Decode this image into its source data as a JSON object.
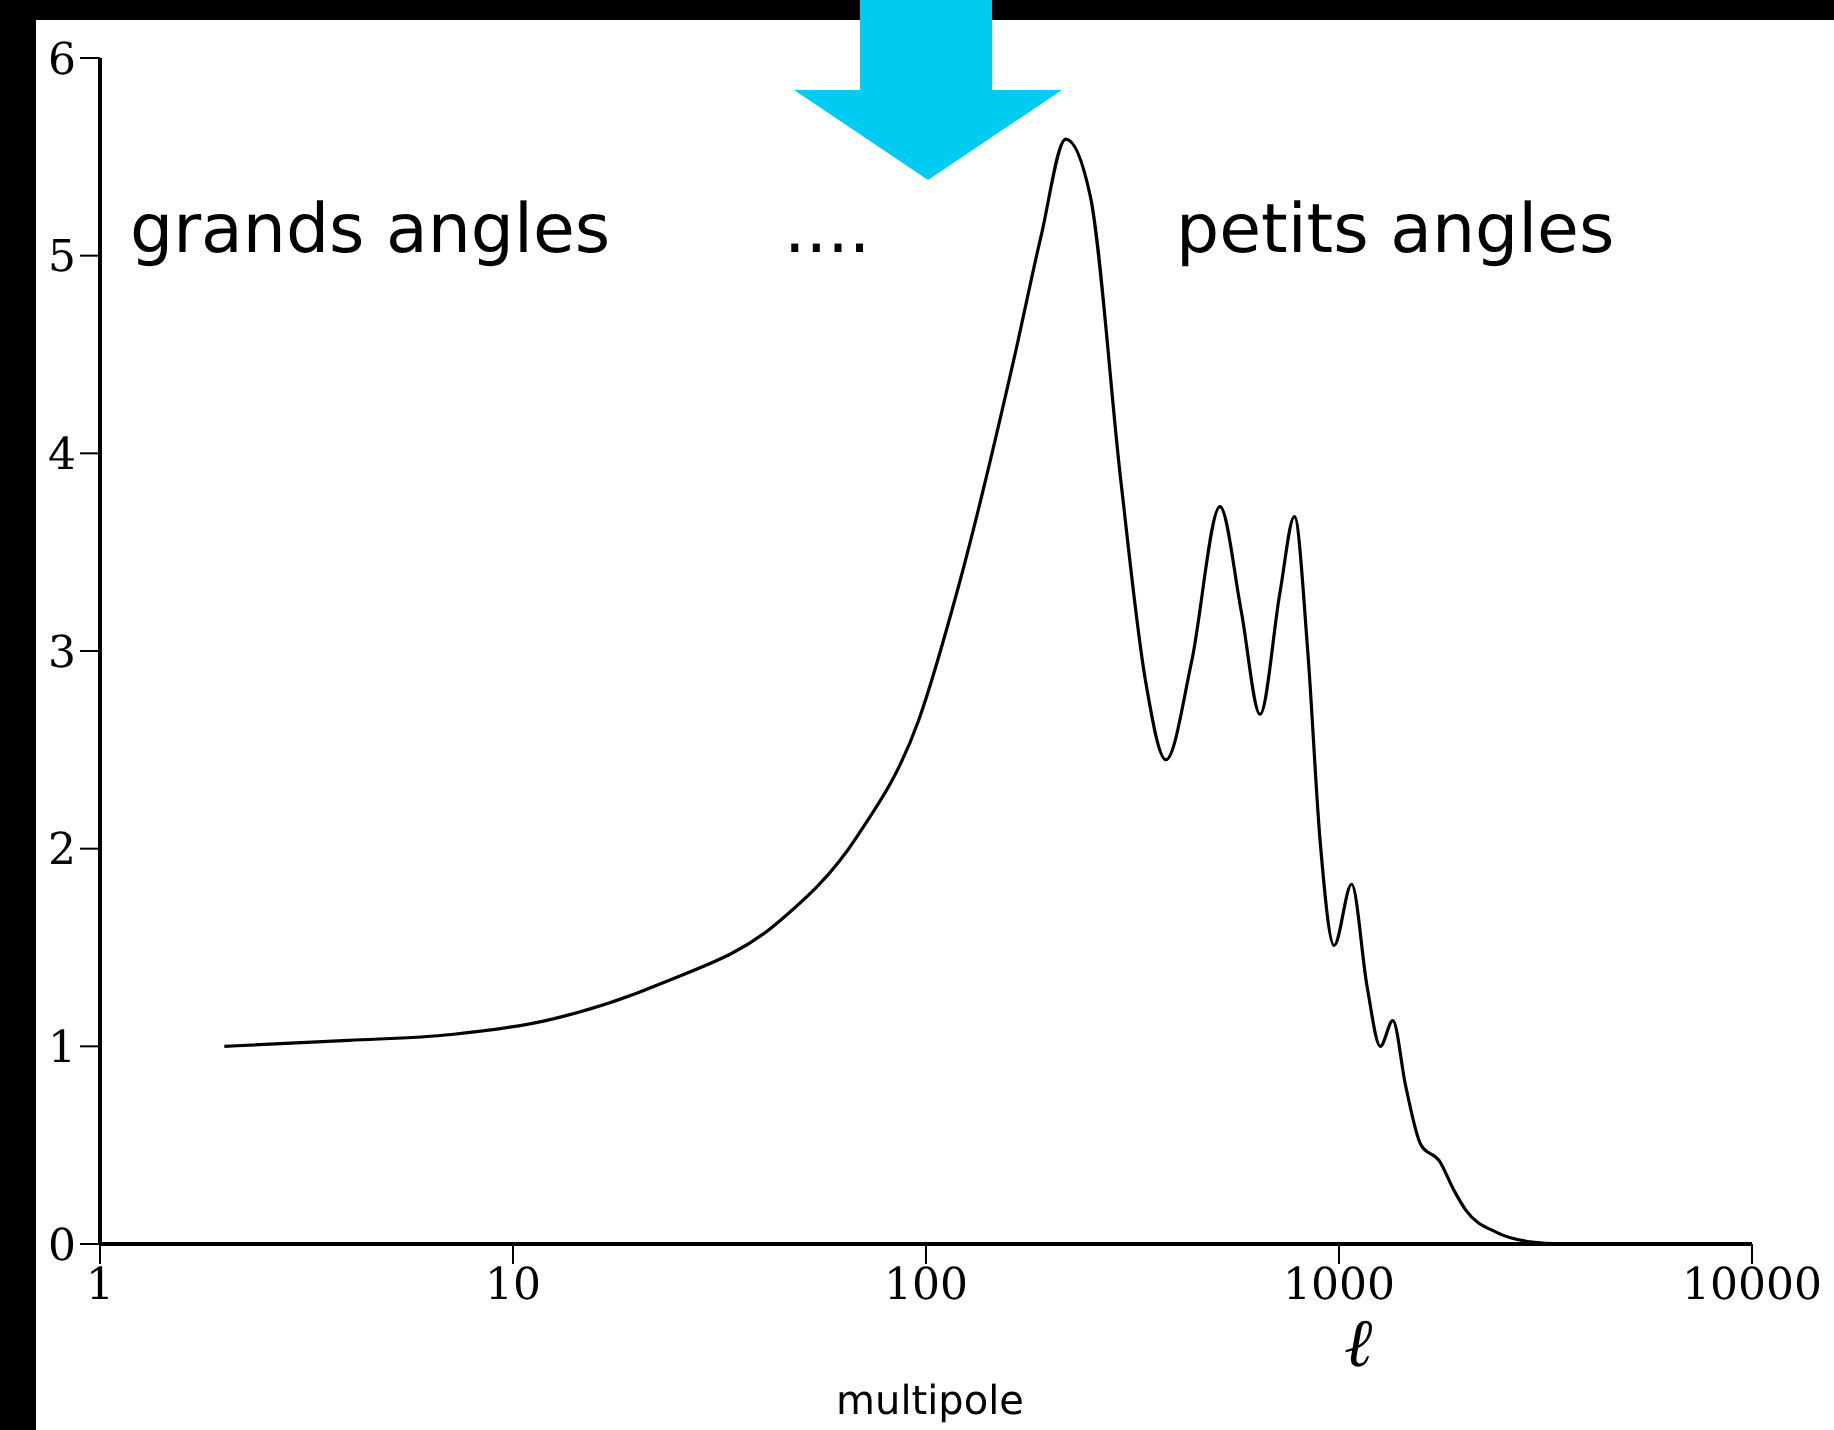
{
  "chart_data": {
    "type": "line",
    "xlabel": "ℓ",
    "annotations": [
      "grands angles",
      "....",
      "petits angles",
      "multipole"
    ],
    "x": [
      2,
      4,
      7.1,
      12,
      23,
      44,
      68,
      96,
      120,
      163,
      190,
      218,
      250,
      296,
      340,
      381,
      440,
      515,
      580,
      644,
      720,
      780,
      840,
      900,
      973,
      1073,
      1170,
      1259,
      1350,
      1450,
      1580,
      1750,
      1900,
      2030,
      2400,
      2930,
      3500
    ],
    "series": [
      {
        "color": "#000000",
        "values": [
          1.0,
          1.03,
          1.06,
          1.13,
          1.32,
          1.63,
          2.06,
          2.65,
          3.33,
          4.47,
          5.1,
          5.59,
          5.3,
          3.87,
          2.85,
          2.45,
          2.95,
          3.73,
          3.2,
          2.68,
          3.3,
          3.68,
          3.0,
          2.04,
          1.51,
          1.82,
          1.3,
          1.0,
          1.13,
          0.8,
          0.5,
          0.42,
          0.27,
          0.17,
          0.06,
          0.01,
          0.0
        ]
      }
    ],
    "xlim": [
      1,
      10000
    ],
    "xticks": [
      1,
      10,
      100,
      1000,
      10000
    ],
    "log": "x",
    "ylim": [
      0,
      6
    ],
    "yticks": [
      0,
      1,
      2,
      3,
      4,
      5,
      6
    ],
    "grid": false,
    "legend": false,
    "marker": "none",
    "line_style": "solid"
  }
}
